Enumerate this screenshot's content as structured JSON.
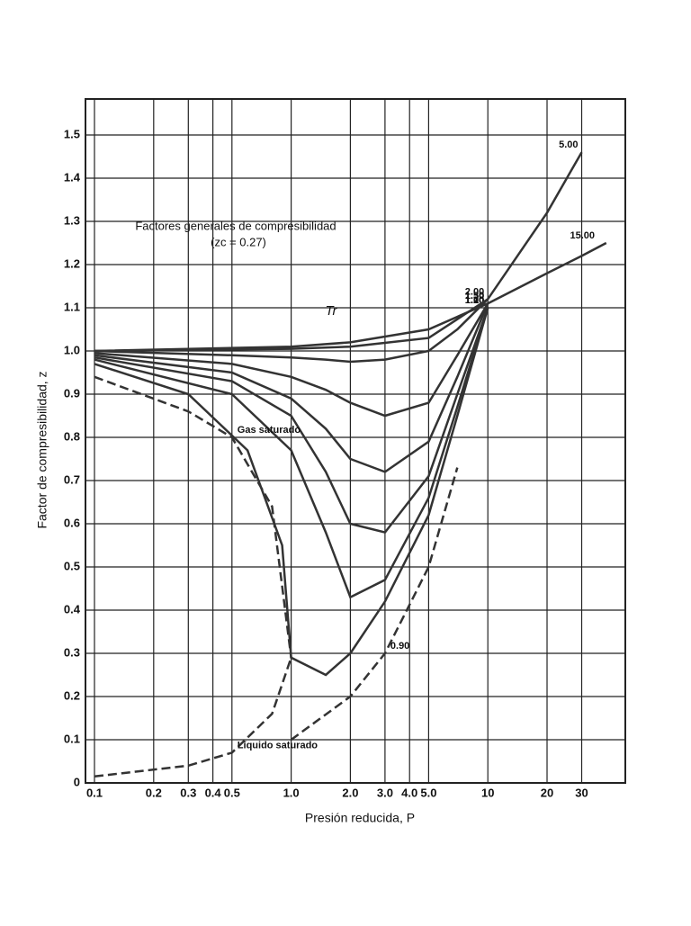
{
  "chart_data": {
    "type": "line",
    "title": "Factores generales de compresibilidad",
    "subtitle": "(zc = 0.27)",
    "annotation": "Tr",
    "xlabel": "Presión reducida, P",
    "ylabel": "Factor de compresibilidad, z",
    "xscale": "log",
    "grid": true,
    "xlim": [
      0.09,
      50
    ],
    "ylim": [
      0,
      1.5
    ],
    "xticks": [
      0.1,
      0.2,
      0.3,
      0.4,
      0.5,
      {
        "value": 1,
        "label": "1.0"
      },
      {
        "value": 2,
        "label": "2.0"
      },
      {
        "value": 3,
        "label": "3.0"
      },
      {
        "value": 4,
        "label": "4.0"
      },
      {
        "value": 5,
        "label": "5.0"
      },
      10,
      20,
      30
    ],
    "yticks": [
      0,
      0.1,
      0.2,
      0.3,
      0.4,
      0.5,
      0.6,
      0.7,
      0.8,
      0.9,
      {
        "value": 1,
        "label": "1.0"
      },
      1.1,
      1.2,
      1.3,
      1.4,
      1.5
    ],
    "series": [
      {
        "name": "1.00",
        "color": "#333333",
        "x": [
          0.1,
          0.3,
          0.6,
          0.9,
          1,
          1.5,
          2,
          3,
          5,
          7,
          10
        ],
        "values": [
          0.97,
          0.9,
          0.77,
          0.55,
          0.29,
          0.25,
          0.3,
          0.42,
          0.62,
          0.85,
          1.1
        ]
      },
      {
        "name": "1.10",
        "color": "#333333",
        "x": [
          0.1,
          0.5,
          1,
          1.5,
          2,
          3,
          5,
          7,
          10
        ],
        "values": [
          0.98,
          0.9,
          0.77,
          0.58,
          0.43,
          0.47,
          0.66,
          0.87,
          1.1
        ]
      },
      {
        "name": "1.20",
        "color": "#333333",
        "x": [
          0.1,
          0.5,
          1,
          1.5,
          2,
          3,
          5,
          7,
          10
        ],
        "values": [
          0.985,
          0.93,
          0.85,
          0.72,
          0.6,
          0.58,
          0.71,
          0.9,
          1.1
        ]
      },
      {
        "name": "1.30",
        "color": "#333333",
        "x": [
          0.1,
          0.5,
          1,
          1.5,
          2,
          3,
          5,
          7,
          10
        ],
        "values": [
          0.99,
          0.95,
          0.89,
          0.82,
          0.75,
          0.72,
          0.79,
          0.94,
          1.11
        ]
      },
      {
        "name": "1.50",
        "color": "#333333",
        "x": [
          0.1,
          0.5,
          1,
          1.5,
          2,
          3,
          5,
          7,
          10
        ],
        "values": [
          0.995,
          0.97,
          0.94,
          0.91,
          0.88,
          0.85,
          0.88,
          0.99,
          1.11
        ]
      },
      {
        "name": "2.00",
        "color": "#333333",
        "x": [
          0.1,
          0.5,
          1,
          1.5,
          2,
          3,
          5,
          7,
          10
        ],
        "values": [
          1.0,
          0.99,
          0.985,
          0.98,
          0.975,
          0.98,
          1.0,
          1.05,
          1.12
        ]
      },
      {
        "name": "5.00",
        "color": "#333333",
        "x": [
          0.1,
          1,
          2,
          5,
          10,
          20,
          30
        ],
        "values": [
          1.0,
          1.005,
          1.01,
          1.03,
          1.12,
          1.32,
          1.46
        ]
      },
      {
        "name": "15.00",
        "color": "#333333",
        "x": [
          0.1,
          1,
          2,
          5,
          10,
          20,
          30,
          40
        ],
        "values": [
          1.0,
          1.01,
          1.02,
          1.05,
          1.11,
          1.18,
          1.22,
          1.25
        ]
      },
      {
        "name": "Gas saturado",
        "color": "#333333",
        "dash": true,
        "x": [
          0.1,
          0.3,
          0.5,
          0.8,
          1
        ],
        "values": [
          0.94,
          0.86,
          0.8,
          0.64,
          0.29
        ]
      },
      {
        "name": "Líquido saturado",
        "color": "#333333",
        "dash": true,
        "x": [
          0.1,
          0.3,
          0.5,
          0.8,
          1
        ],
        "values": [
          0.015,
          0.04,
          0.07,
          0.16,
          0.29
        ]
      },
      {
        "name": "0.90",
        "color": "#333333",
        "dash": true,
        "x": [
          1,
          2,
          3,
          5,
          7
        ],
        "values": [
          0.1,
          0.2,
          0.3,
          0.5,
          0.73
        ]
      }
    ]
  }
}
